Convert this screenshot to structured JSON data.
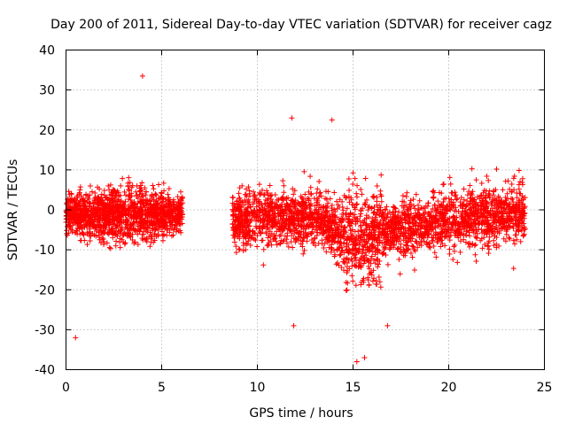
{
  "chart_data": {
    "type": "scatter",
    "title": "Day 200 of 2011, Sidereal Day-to-day VTEC variation (SDTVAR) for receiver cagz",
    "xlabel": "GPS time / hours",
    "ylabel": "SDTVAR / TECUs",
    "xlim": [
      0,
      25
    ],
    "ylim": [
      -40,
      40
    ],
    "xticks": [
      "0",
      "5",
      "10",
      "15",
      "20",
      "25"
    ],
    "yticks": [
      "40",
      "30",
      "20",
      "10",
      "0",
      "-10",
      "-20",
      "-30",
      "-40"
    ],
    "grid": true,
    "marker": "+",
    "color": "#ff0000",
    "series": [
      {
        "name": "SDTVAR",
        "segments": [
          {
            "x_range": [
              0.0,
              6.1
            ],
            "center": 0,
            "spread": 7
          },
          {
            "x_range": [
              8.7,
              24.0
            ],
            "center_trend": "~0 near 9-14h, dipping to ~-8 near 15.5h, rising to ~0 by 24h",
            "spread": 7
          }
        ],
        "outliers": [
          {
            "x": 4.0,
            "y": 33.5
          },
          {
            "x": 0.5,
            "y": -32
          },
          {
            "x": 15.2,
            "y": -38
          },
          {
            "x": 15.6,
            "y": -37
          },
          {
            "x": 11.8,
            "y": 23
          },
          {
            "x": 13.9,
            "y": 22.5
          },
          {
            "x": 11.9,
            "y": -29
          },
          {
            "x": 16.8,
            "y": -29
          }
        ]
      }
    ]
  }
}
